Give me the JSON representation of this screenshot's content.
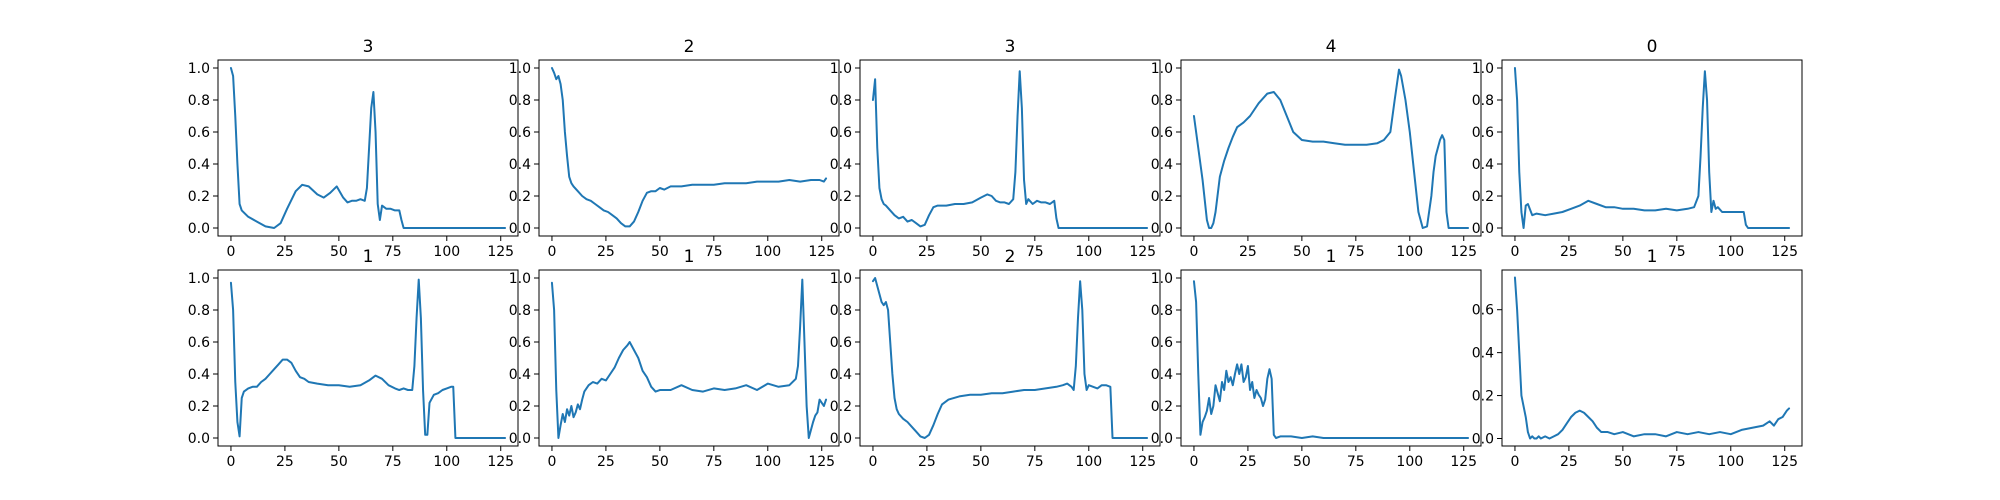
{
  "colors": {
    "line": "#1f77b4",
    "axes": "#000000",
    "background": "#ffffff"
  },
  "chart_data": [
    {
      "type": "line",
      "title": "3",
      "xlim": [
        -6,
        133
      ],
      "ylim": [
        -0.05,
        1.05
      ],
      "xticks": [
        "0",
        "25",
        "50",
        "75",
        "100",
        "125"
      ],
      "yticks": [
        "0.0",
        "0.2",
        "0.4",
        "0.6",
        "0.8",
        "1.0"
      ],
      "x": [
        0,
        1,
        2,
        3,
        4,
        5,
        8,
        12,
        16,
        20,
        23,
        26,
        30,
        33,
        36,
        40,
        43,
        46,
        49,
        52,
        54,
        56,
        58,
        60,
        62,
        63,
        64,
        65,
        66,
        67,
        68,
        69,
        70,
        72,
        74,
        76,
        78,
        79,
        80,
        82,
        90,
        100,
        110,
        120,
        127
      ],
      "y": [
        1.0,
        0.95,
        0.7,
        0.4,
        0.15,
        0.11,
        0.07,
        0.04,
        0.01,
        0.0,
        0.03,
        0.12,
        0.23,
        0.27,
        0.26,
        0.21,
        0.19,
        0.22,
        0.26,
        0.19,
        0.16,
        0.17,
        0.17,
        0.18,
        0.17,
        0.25,
        0.5,
        0.75,
        0.85,
        0.6,
        0.15,
        0.05,
        0.14,
        0.12,
        0.12,
        0.11,
        0.11,
        0.05,
        0.0,
        0.0,
        0.0,
        0.0,
        0.0,
        0.0,
        0.0
      ]
    },
    {
      "type": "line",
      "title": "2",
      "xlim": [
        -6,
        133
      ],
      "ylim": [
        -0.05,
        1.05
      ],
      "xticks": [
        "0",
        "25",
        "50",
        "75",
        "100",
        "125"
      ],
      "yticks": [
        "0.0",
        "0.2",
        "0.4",
        "0.6",
        "0.8",
        "1.0"
      ],
      "x": [
        0,
        1,
        2,
        3,
        4,
        5,
        6,
        7,
        8,
        9,
        10,
        12,
        14,
        16,
        18,
        20,
        22,
        24,
        26,
        28,
        30,
        32,
        34,
        36,
        38,
        40,
        42,
        44,
        46,
        48,
        50,
        52,
        55,
        60,
        65,
        70,
        75,
        80,
        85,
        90,
        95,
        100,
        105,
        110,
        115,
        120,
        124,
        126,
        127
      ],
      "y": [
        1.0,
        0.97,
        0.93,
        0.95,
        0.9,
        0.8,
        0.6,
        0.45,
        0.32,
        0.28,
        0.26,
        0.23,
        0.2,
        0.18,
        0.17,
        0.15,
        0.13,
        0.11,
        0.1,
        0.08,
        0.06,
        0.03,
        0.01,
        0.01,
        0.04,
        0.1,
        0.17,
        0.22,
        0.23,
        0.23,
        0.25,
        0.24,
        0.26,
        0.26,
        0.27,
        0.27,
        0.27,
        0.28,
        0.28,
        0.28,
        0.29,
        0.29,
        0.29,
        0.3,
        0.29,
        0.3,
        0.3,
        0.29,
        0.31
      ]
    },
    {
      "type": "line",
      "title": "3",
      "xlim": [
        -6,
        133
      ],
      "ylim": [
        -0.05,
        1.05
      ],
      "xticks": [
        "0",
        "25",
        "50",
        "75",
        "100",
        "125"
      ],
      "yticks": [
        "0.0",
        "0.2",
        "0.4",
        "0.6",
        "0.8",
        "1.0"
      ],
      "x": [
        0,
        1,
        2,
        3,
        4,
        5,
        6,
        8,
        10,
        12,
        14,
        16,
        18,
        20,
        22,
        24,
        26,
        28,
        30,
        34,
        38,
        42,
        46,
        50,
        53,
        55,
        57,
        59,
        61,
        63,
        65,
        66,
        67,
        68,
        69,
        70,
        71,
        72,
        74,
        76,
        78,
        80,
        82,
        84,
        85,
        86,
        90,
        100,
        110,
        120,
        127
      ],
      "y": [
        0.8,
        0.93,
        0.5,
        0.25,
        0.18,
        0.15,
        0.14,
        0.11,
        0.08,
        0.06,
        0.07,
        0.04,
        0.05,
        0.03,
        0.01,
        0.02,
        0.08,
        0.13,
        0.14,
        0.14,
        0.15,
        0.15,
        0.16,
        0.19,
        0.21,
        0.2,
        0.17,
        0.16,
        0.16,
        0.15,
        0.18,
        0.35,
        0.7,
        0.98,
        0.75,
        0.3,
        0.15,
        0.18,
        0.15,
        0.17,
        0.16,
        0.16,
        0.15,
        0.17,
        0.06,
        0.0,
        0.0,
        0.0,
        0.0,
        0.0,
        0.0
      ]
    },
    {
      "type": "line",
      "title": "4",
      "xlim": [
        -6,
        133
      ],
      "ylim": [
        -0.05,
        1.05
      ],
      "xticks": [
        "0",
        "25",
        "50",
        "75",
        "100",
        "125"
      ],
      "yticks": [
        "0.0",
        "0.2",
        "0.4",
        "0.6",
        "0.8",
        "1.0"
      ],
      "x": [
        0,
        2,
        4,
        6,
        7,
        8,
        9,
        10,
        12,
        14,
        16,
        18,
        20,
        23,
        26,
        30,
        34,
        37,
        40,
        43,
        46,
        50,
        55,
        60,
        65,
        70,
        75,
        80,
        85,
        88,
        91,
        93,
        95,
        96,
        98,
        100,
        102,
        104,
        106,
        108,
        110,
        111,
        112,
        114,
        115,
        116,
        117,
        118,
        120,
        125,
        127
      ],
      "y": [
        0.7,
        0.5,
        0.3,
        0.05,
        0.0,
        0.0,
        0.03,
        0.1,
        0.32,
        0.42,
        0.5,
        0.57,
        0.63,
        0.66,
        0.7,
        0.78,
        0.84,
        0.85,
        0.8,
        0.7,
        0.6,
        0.55,
        0.54,
        0.54,
        0.53,
        0.52,
        0.52,
        0.52,
        0.53,
        0.55,
        0.6,
        0.8,
        0.99,
        0.95,
        0.8,
        0.6,
        0.35,
        0.1,
        0.0,
        0.01,
        0.2,
        0.35,
        0.45,
        0.55,
        0.58,
        0.55,
        0.1,
        0.0,
        0.0,
        0.0,
        0.0
      ]
    },
    {
      "type": "line",
      "title": "0",
      "xlim": [
        -6,
        133
      ],
      "ylim": [
        -0.05,
        1.05
      ],
      "xticks": [
        "0",
        "25",
        "50",
        "75",
        "100",
        "125"
      ],
      "yticks": [
        "0.0",
        "0.2",
        "0.4",
        "0.6",
        "0.8",
        "1.0"
      ],
      "x": [
        0,
        1,
        2,
        3,
        4,
        5,
        6,
        8,
        10,
        14,
        18,
        22,
        26,
        30,
        34,
        38,
        42,
        46,
        50,
        55,
        60,
        65,
        70,
        75,
        80,
        83,
        85,
        86,
        87,
        88,
        89,
        90,
        91,
        92,
        93,
        94,
        96,
        100,
        104,
        106,
        107,
        108,
        110,
        115,
        120,
        127
      ],
      "y": [
        1.0,
        0.8,
        0.35,
        0.1,
        0.0,
        0.14,
        0.15,
        0.08,
        0.09,
        0.08,
        0.09,
        0.1,
        0.12,
        0.14,
        0.17,
        0.15,
        0.13,
        0.13,
        0.12,
        0.12,
        0.11,
        0.11,
        0.12,
        0.11,
        0.12,
        0.13,
        0.2,
        0.45,
        0.75,
        0.98,
        0.8,
        0.35,
        0.1,
        0.17,
        0.12,
        0.13,
        0.1,
        0.1,
        0.1,
        0.1,
        0.02,
        0.0,
        0.0,
        0.0,
        0.0,
        0.0
      ]
    },
    {
      "type": "line",
      "title": "1",
      "xlim": [
        -6,
        133
      ],
      "ylim": [
        -0.05,
        1.05
      ],
      "xticks": [
        "0",
        "25",
        "50",
        "75",
        "100",
        "125"
      ],
      "yticks": [
        "0.0",
        "0.2",
        "0.4",
        "0.6",
        "0.8",
        "1.0"
      ],
      "x": [
        0,
        1,
        2,
        3,
        4,
        5,
        6,
        8,
        10,
        12,
        14,
        16,
        18,
        20,
        22,
        24,
        26,
        28,
        30,
        32,
        34,
        36,
        40,
        45,
        50,
        55,
        60,
        64,
        67,
        70,
        73,
        76,
        78,
        80,
        82,
        84,
        85,
        86,
        87,
        88,
        89,
        90,
        91,
        92,
        94,
        96,
        98,
        100,
        102,
        103,
        104,
        110,
        120,
        127
      ],
      "y": [
        0.97,
        0.8,
        0.35,
        0.1,
        0.01,
        0.25,
        0.29,
        0.31,
        0.32,
        0.32,
        0.35,
        0.37,
        0.4,
        0.43,
        0.46,
        0.49,
        0.49,
        0.47,
        0.42,
        0.38,
        0.37,
        0.35,
        0.34,
        0.33,
        0.33,
        0.32,
        0.33,
        0.36,
        0.39,
        0.37,
        0.33,
        0.31,
        0.3,
        0.31,
        0.3,
        0.3,
        0.45,
        0.75,
        0.99,
        0.75,
        0.3,
        0.02,
        0.02,
        0.22,
        0.27,
        0.28,
        0.3,
        0.31,
        0.32,
        0.32,
        0.0,
        0.0,
        0.0,
        0.0
      ]
    },
    {
      "type": "line",
      "title": "1",
      "xlim": [
        -6,
        133
      ],
      "ylim": [
        -0.05,
        1.05
      ],
      "xticks": [
        "0",
        "25",
        "50",
        "75",
        "100",
        "125"
      ],
      "yticks": [
        "0.0",
        "0.2",
        "0.4",
        "0.6",
        "0.8",
        "1.0"
      ],
      "x": [
        0,
        1,
        2,
        3,
        4,
        5,
        6,
        7,
        8,
        9,
        10,
        11,
        12,
        13,
        14,
        15,
        17,
        19,
        21,
        23,
        25,
        27,
        29,
        31,
        33,
        35,
        36,
        38,
        40,
        42,
        44,
        46,
        48,
        50,
        55,
        60,
        65,
        70,
        75,
        80,
        85,
        90,
        95,
        100,
        105,
        110,
        113,
        114,
        115,
        116,
        117,
        118,
        119,
        120,
        121,
        122,
        123,
        124,
        125,
        126,
        127
      ],
      "y": [
        0.97,
        0.8,
        0.3,
        0.0,
        0.08,
        0.15,
        0.1,
        0.18,
        0.14,
        0.2,
        0.13,
        0.16,
        0.21,
        0.18,
        0.24,
        0.29,
        0.33,
        0.35,
        0.34,
        0.37,
        0.36,
        0.4,
        0.44,
        0.5,
        0.55,
        0.58,
        0.6,
        0.55,
        0.5,
        0.42,
        0.38,
        0.32,
        0.29,
        0.3,
        0.3,
        0.33,
        0.3,
        0.29,
        0.31,
        0.3,
        0.31,
        0.33,
        0.3,
        0.34,
        0.32,
        0.33,
        0.37,
        0.45,
        0.7,
        0.99,
        0.6,
        0.2,
        0.0,
        0.05,
        0.1,
        0.14,
        0.16,
        0.24,
        0.22,
        0.2,
        0.24
      ]
    },
    {
      "type": "line",
      "title": "2",
      "xlim": [
        -6,
        133
      ],
      "ylim": [
        -0.05,
        1.05
      ],
      "xticks": [
        "0",
        "25",
        "50",
        "75",
        "100",
        "125"
      ],
      "yticks": [
        "0.0",
        "0.2",
        "0.4",
        "0.6",
        "0.8",
        "1.0"
      ],
      "x": [
        0,
        1,
        2,
        3,
        4,
        5,
        6,
        7,
        8,
        9,
        10,
        11,
        12,
        14,
        16,
        18,
        20,
        22,
        24,
        26,
        28,
        30,
        32,
        35,
        40,
        45,
        50,
        55,
        60,
        65,
        70,
        75,
        80,
        85,
        88,
        90,
        92,
        93,
        94,
        95,
        96,
        97,
        98,
        99,
        100,
        102,
        104,
        106,
        108,
        110,
        111,
        112,
        115,
        120,
        127
      ],
      "y": [
        0.98,
        1.0,
        0.95,
        0.9,
        0.85,
        0.83,
        0.85,
        0.8,
        0.6,
        0.4,
        0.25,
        0.18,
        0.15,
        0.12,
        0.1,
        0.07,
        0.04,
        0.01,
        0.0,
        0.02,
        0.08,
        0.15,
        0.21,
        0.24,
        0.26,
        0.27,
        0.27,
        0.28,
        0.28,
        0.29,
        0.3,
        0.3,
        0.31,
        0.32,
        0.33,
        0.34,
        0.32,
        0.3,
        0.45,
        0.75,
        0.98,
        0.8,
        0.4,
        0.3,
        0.33,
        0.32,
        0.31,
        0.33,
        0.33,
        0.32,
        0.0,
        0.0,
        0.0,
        0.0,
        0.0
      ]
    },
    {
      "type": "line",
      "title": "1",
      "xlim": [
        -6,
        133
      ],
      "ylim": [
        -0.05,
        1.05
      ],
      "xticks": [
        "0",
        "25",
        "50",
        "75",
        "100",
        "125"
      ],
      "yticks": [
        "0.0",
        "0.2",
        "0.4",
        "0.6",
        "0.8",
        "1.0"
      ],
      "x": [
        0,
        1,
        2,
        3,
        4,
        5,
        6,
        7,
        8,
        9,
        10,
        11,
        12,
        13,
        14,
        15,
        16,
        17,
        18,
        19,
        20,
        21,
        22,
        23,
        24,
        25,
        26,
        27,
        28,
        29,
        30,
        31,
        32,
        33,
        34,
        35,
        36,
        37,
        38,
        40,
        45,
        50,
        55,
        60,
        70,
        80,
        90,
        100,
        110,
        120,
        127
      ],
      "y": [
        0.98,
        0.85,
        0.4,
        0.02,
        0.1,
        0.13,
        0.17,
        0.25,
        0.15,
        0.2,
        0.33,
        0.28,
        0.23,
        0.35,
        0.3,
        0.42,
        0.35,
        0.38,
        0.33,
        0.4,
        0.46,
        0.4,
        0.46,
        0.35,
        0.38,
        0.45,
        0.3,
        0.35,
        0.25,
        0.3,
        0.27,
        0.25,
        0.2,
        0.24,
        0.37,
        0.43,
        0.37,
        0.02,
        0.0,
        0.01,
        0.01,
        0.0,
        0.01,
        0.0,
        0.0,
        0.0,
        0.0,
        0.0,
        0.0,
        0.0,
        0.0
      ]
    },
    {
      "type": "line",
      "title": "1",
      "xlim": [
        -6,
        133
      ],
      "ylim": [
        -0.035,
        0.785
      ],
      "xticks": [
        "0",
        "25",
        "50",
        "75",
        "100",
        "125"
      ],
      "yticks": [
        "0.0",
        "0.2",
        "0.4",
        "0.6"
      ],
      "x": [
        0,
        1,
        2,
        3,
        4,
        5,
        6,
        7,
        8,
        9,
        10,
        11,
        12,
        14,
        16,
        18,
        20,
        22,
        24,
        26,
        28,
        30,
        32,
        34,
        36,
        38,
        40,
        43,
        46,
        50,
        55,
        60,
        65,
        70,
        75,
        80,
        85,
        90,
        95,
        100,
        105,
        110,
        115,
        118,
        120,
        122,
        124,
        126,
        127
      ],
      "y": [
        0.75,
        0.6,
        0.4,
        0.2,
        0.15,
        0.1,
        0.03,
        0.0,
        0.01,
        0.0,
        0.0,
        0.01,
        0.0,
        0.01,
        0.0,
        0.01,
        0.02,
        0.04,
        0.07,
        0.1,
        0.12,
        0.13,
        0.12,
        0.1,
        0.08,
        0.05,
        0.03,
        0.03,
        0.02,
        0.03,
        0.01,
        0.02,
        0.02,
        0.01,
        0.03,
        0.02,
        0.03,
        0.02,
        0.03,
        0.02,
        0.04,
        0.05,
        0.06,
        0.08,
        0.06,
        0.09,
        0.1,
        0.13,
        0.14
      ]
    }
  ]
}
